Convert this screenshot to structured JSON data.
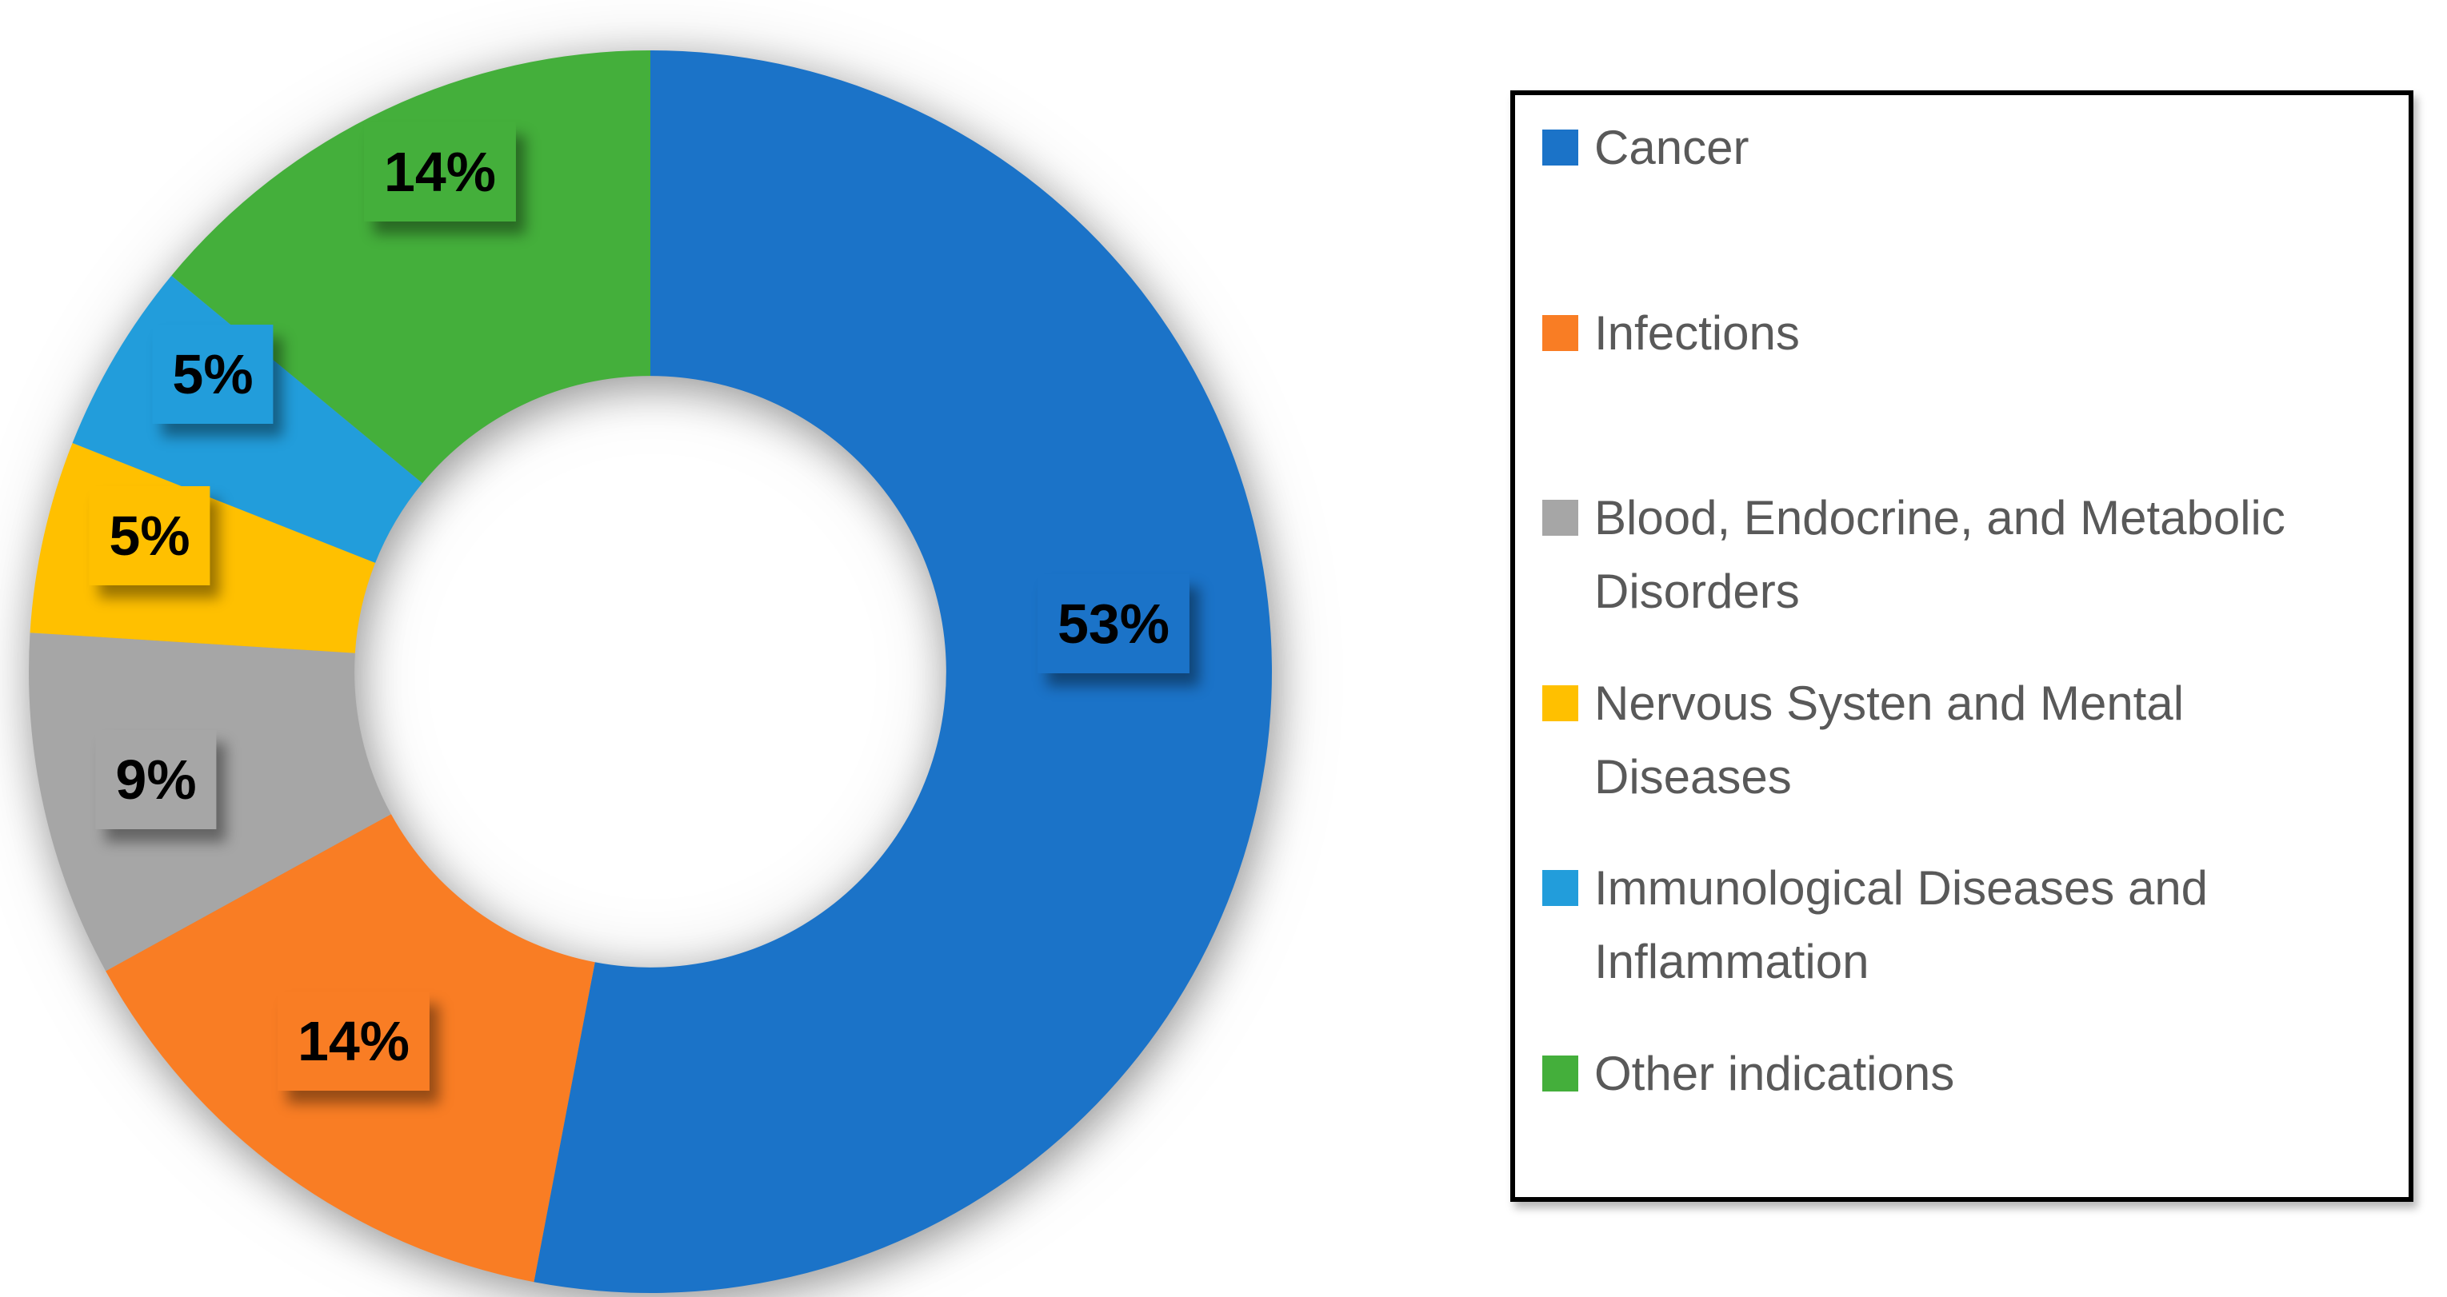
{
  "chart_data": {
    "type": "pie",
    "subtype": "donut",
    "title": "",
    "categories": [
      "Cancer",
      "Infections",
      "Blood, Endocrine, and Metabolic Disorders",
      "Nervous Systen and Mental Diseases",
      "Immunological Diseases and Inflammation",
      "Other indications"
    ],
    "values": [
      53,
      14,
      9,
      5,
      5,
      14
    ],
    "data_labels": [
      "53%",
      "14%",
      "9%",
      "5%",
      "5%",
      "14%"
    ],
    "colors": [
      "#1B73C8",
      "#F97D24",
      "#A6A6A6",
      "#FFC000",
      "#229DDB",
      "#44AF3B"
    ],
    "unit": "%",
    "start_angle_deg": 0,
    "direction": "clockwise",
    "hole_ratio": 0.476,
    "legend_position": "right",
    "grid": false
  },
  "legend": {
    "border_color": "#000000",
    "text_color": "#595959",
    "items": [
      {
        "label": "Cancer",
        "color": "#1B73C8"
      },
      {
        "label": "Infections",
        "color": "#F97D24"
      },
      {
        "label": "Blood, Endocrine, and Metabolic\nDisorders",
        "color": "#A6A6A6"
      },
      {
        "label": "Nervous Systen and Mental\nDiseases",
        "color": "#FFC000"
      },
      {
        "label": "Immunological Diseases and\nInflammation",
        "color": "#229DDB"
      },
      {
        "label": "Other indications",
        "color": "#44AF3B"
      }
    ]
  }
}
